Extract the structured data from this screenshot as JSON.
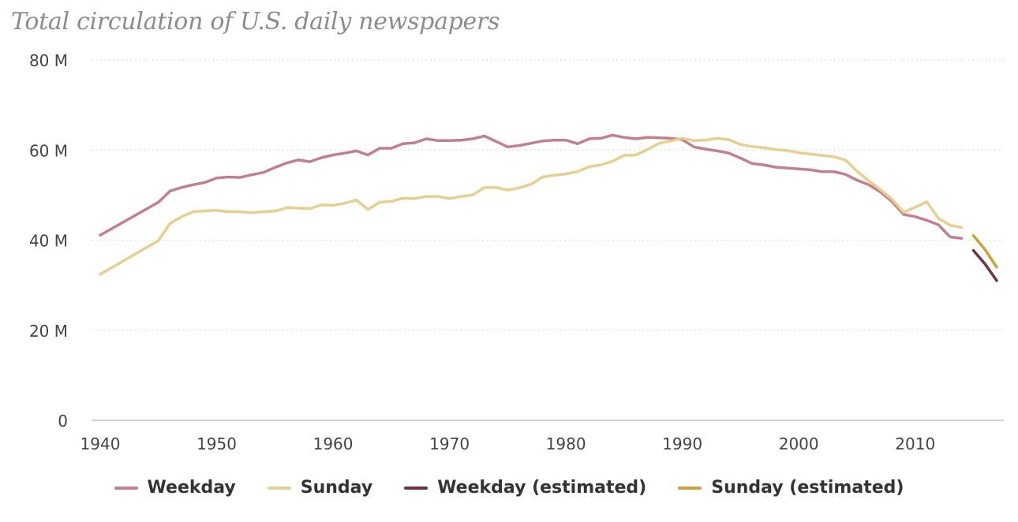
{
  "chart_data": {
    "type": "line",
    "title": "Total circulation of U.S. daily newspapers",
    "xlim": [
      1940,
      2017
    ],
    "ylim": [
      0,
      80
    ],
    "y_ticks": [
      0,
      20,
      40,
      60,
      80
    ],
    "y_tick_labels": [
      "0",
      "20 M",
      "40 M",
      "60 M",
      "80 M"
    ],
    "x_ticks": [
      1940,
      1950,
      1960,
      1970,
      1980,
      1990,
      2000,
      2010
    ],
    "x_tick_labels": [
      "1940",
      "1950",
      "1960",
      "1970",
      "1980",
      "1990",
      "2000",
      "2010"
    ],
    "grid": true,
    "legend_position": "bottom",
    "series": [
      {
        "name": "Weekday",
        "color": "#c2808d",
        "x": [
          1940,
          1945,
          1946,
          1947,
          1948,
          1949,
          1950,
          1951,
          1952,
          1953,
          1954,
          1955,
          1956,
          1957,
          1958,
          1959,
          1960,
          1961,
          1962,
          1963,
          1964,
          1965,
          1966,
          1967,
          1968,
          1969,
          1970,
          1971,
          1972,
          1973,
          1974,
          1975,
          1976,
          1977,
          1978,
          1979,
          1980,
          1981,
          1982,
          1983,
          1984,
          1985,
          1986,
          1987,
          1988,
          1989,
          1990,
          1991,
          1992,
          1993,
          1994,
          1995,
          1996,
          1997,
          1998,
          1999,
          2000,
          2001,
          2002,
          2003,
          2004,
          2005,
          2006,
          2007,
          2008,
          2009,
          2010,
          2011,
          2012,
          2013,
          2014
        ],
        "values": [
          41.1,
          48.4,
          50.9,
          51.7,
          52.3,
          52.8,
          53.8,
          54.0,
          53.9,
          54.5,
          55.0,
          56.1,
          57.1,
          57.8,
          57.4,
          58.3,
          58.9,
          59.3,
          59.8,
          58.9,
          60.4,
          60.4,
          61.4,
          61.6,
          62.5,
          62.1,
          62.1,
          62.2,
          62.5,
          63.1,
          61.9,
          60.7,
          61.0,
          61.5,
          62.0,
          62.2,
          62.2,
          61.4,
          62.5,
          62.6,
          63.3,
          62.8,
          62.5,
          62.8,
          62.7,
          62.6,
          62.3,
          60.7,
          60.2,
          59.8,
          59.3,
          58.2,
          57.0,
          56.7,
          56.2,
          56.0,
          55.8,
          55.6,
          55.2,
          55.2,
          54.6,
          53.3,
          52.3,
          50.7,
          48.6,
          45.7,
          45.2,
          44.4,
          43.4,
          40.7,
          40.4
        ]
      },
      {
        "name": "Sunday",
        "color": "#e6cf8f",
        "x": [
          1940,
          1945,
          1946,
          1947,
          1948,
          1949,
          1950,
          1951,
          1952,
          1953,
          1954,
          1955,
          1956,
          1957,
          1958,
          1959,
          1960,
          1961,
          1962,
          1963,
          1964,
          1965,
          1966,
          1967,
          1968,
          1969,
          1970,
          1971,
          1972,
          1973,
          1974,
          1975,
          1976,
          1977,
          1978,
          1979,
          1980,
          1981,
          1982,
          1983,
          1984,
          1985,
          1986,
          1987,
          1988,
          1989,
          1990,
          1991,
          1992,
          1993,
          1994,
          1995,
          1996,
          1997,
          1998,
          1999,
          2000,
          2001,
          2002,
          2003,
          2004,
          2005,
          2006,
          2007,
          2008,
          2009,
          2010,
          2011,
          2012,
          2013,
          2014
        ],
        "values": [
          32.4,
          39.9,
          43.7,
          45.2,
          46.3,
          46.5,
          46.6,
          46.3,
          46.3,
          46.1,
          46.3,
          46.4,
          47.2,
          47.1,
          47.0,
          47.8,
          47.7,
          48.2,
          48.9,
          46.8,
          48.4,
          48.6,
          49.3,
          49.2,
          49.7,
          49.7,
          49.2,
          49.7,
          50.0,
          51.7,
          51.7,
          51.1,
          51.6,
          52.4,
          54.0,
          54.4,
          54.7,
          55.2,
          56.3,
          56.7,
          57.5,
          58.8,
          58.9,
          60.1,
          61.5,
          62.0,
          62.6,
          62.1,
          62.2,
          62.6,
          62.3,
          61.2,
          60.8,
          60.5,
          60.1,
          59.9,
          59.4,
          59.1,
          58.8,
          58.5,
          57.8,
          55.3,
          53.2,
          51.2,
          49.1,
          46.2,
          47.3,
          48.5,
          44.8,
          43.3,
          42.8
        ]
      },
      {
        "name": "Weekday (estimated)",
        "color": "#6e3440",
        "x": [
          2015,
          2016,
          2017
        ],
        "values": [
          37.7,
          34.7,
          31.0
        ]
      },
      {
        "name": "Sunday (estimated)",
        "color": "#c9a43a",
        "x": [
          2015,
          2016,
          2017
        ],
        "values": [
          41.0,
          37.9,
          34.0
        ]
      }
    ]
  }
}
